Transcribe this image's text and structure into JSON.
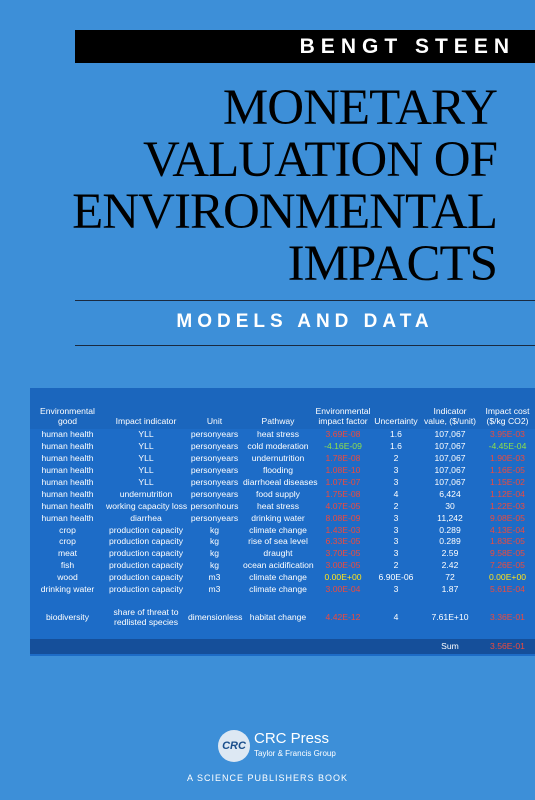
{
  "cover": {
    "author": "BENGT STEEN",
    "title_lines": [
      "MONETARY",
      "VALUATION OF",
      "ENVIRONMENTAL",
      "IMPACTS"
    ],
    "subtitle": "MODELS AND DATA"
  },
  "table": {
    "columns": [
      "Environmental good",
      "Impact indicator",
      "Unit",
      "Pathway",
      "Environmental impact factor",
      "Uncertainty",
      "Indicator value, ($/unit)",
      "Impact cost ($/kg CO2)"
    ],
    "rows": [
      [
        "human health",
        "YLL",
        "personyears",
        "heat stress",
        "3.69E-08",
        "1.6",
        "107,067",
        "3.95E-03"
      ],
      [
        "human health",
        "YLL",
        "personyears",
        "cold moderation",
        "-4.16E-09",
        "1.6",
        "107,067",
        "-4.45E-04"
      ],
      [
        "human health",
        "YLL",
        "personyears",
        "undernutrition",
        "1.78E-08",
        "2",
        "107,067",
        "1.90E-03"
      ],
      [
        "human health",
        "YLL",
        "personyears",
        "flooding",
        "1.08E-10",
        "3",
        "107,067",
        "1.16E-05"
      ],
      [
        "human health",
        "YLL",
        "personyears",
        "diarrhoeal diseases",
        "1.07E-07",
        "3",
        "107,067",
        "1.15E-02"
      ],
      [
        "human health",
        "undernutrition",
        "personyears",
        "food supply",
        "1.75E-08",
        "4",
        "6,424",
        "1.12E-04"
      ],
      [
        "human health",
        "working capacity loss",
        "personhours",
        "heat stress",
        "4.07E-05",
        "2",
        "30",
        "1.22E-03"
      ],
      [
        "human health",
        "diarrhea",
        "personyears",
        "drinking water",
        "8.08E-09",
        "3",
        "11,242",
        "9.08E-05"
      ],
      [
        "crop",
        "production capacity",
        "kg",
        "climate change",
        "1.43E-03",
        "3",
        "0.289",
        "4.13E-04"
      ],
      [
        "crop",
        "production capacity",
        "kg",
        "rise of sea level",
        "6.33E-05",
        "3",
        "0.289",
        "1.83E-05"
      ],
      [
        "meat",
        "production capacity",
        "kg",
        "draught",
        "3.70E-05",
        "3",
        "2.59",
        "9.58E-05"
      ],
      [
        "fish",
        "production capacity",
        "kg",
        "ocean acidification",
        "3.00E-05",
        "2",
        "2.42",
        "7.26E-05"
      ],
      [
        "wood",
        "production capacity",
        "m3",
        "climate change",
        "0.00E+00",
        "6.90E-06",
        "72",
        "0.00E+00"
      ],
      [
        "drinking water",
        "production capacity",
        "m3",
        "climate change",
        "3.00E-04",
        "3",
        "1.87",
        "5.61E-04"
      ],
      [
        "biodiversity",
        "share of threat to redlisted species",
        "dimensionless",
        "habitat change",
        "4.42E-12",
        "4",
        "7.61E+10",
        "3.36E-01"
      ]
    ],
    "sum_label": "Sum",
    "sum_value": "3.56E-01",
    "value_colors": {
      "positive": "#ef4a3c",
      "negative": "#8ee04a",
      "zero": "#ffe21a"
    }
  },
  "publisher": {
    "logo": "CRC",
    "name": "CRC Press",
    "group": "Taylor & Francis Group",
    "imprint": "A SCIENCE PUBLISHERS BOOK"
  }
}
